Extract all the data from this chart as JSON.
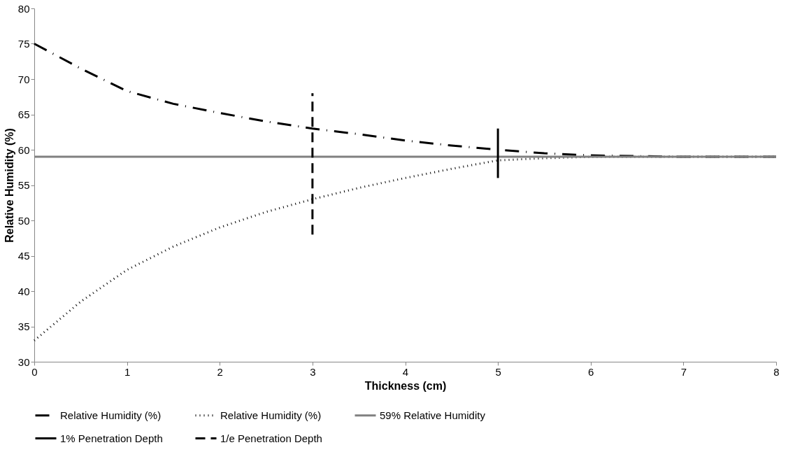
{
  "chart_data": {
    "type": "line",
    "xlabel": "Thickness  (cm)",
    "ylabel": "Relative Humidity (%)",
    "xlim": [
      0,
      8
    ],
    "xticks": [
      0,
      1,
      2,
      3,
      4,
      5,
      6,
      7,
      8
    ],
    "ylim": [
      30,
      80
    ],
    "yticks": [
      30,
      35,
      40,
      45,
      50,
      55,
      60,
      65,
      70,
      75,
      80
    ],
    "grid": false,
    "legend": "bottom",
    "marker": "none",
    "series": [
      {
        "name": "Relative Humidity (%)",
        "color": "#000000",
        "line_style": "dashdot",
        "x": [
          0,
          0.5,
          1,
          1.5,
          2,
          2.5,
          3,
          3.5,
          4,
          4.5,
          5,
          5.5,
          6,
          7,
          8
        ],
        "values": [
          75,
          71.5,
          68.3,
          66.5,
          65.2,
          64,
          63,
          62.2,
          61.3,
          60.6,
          60,
          59.5,
          59.2,
          59,
          59
        ]
      },
      {
        "name": "Relative Humidity (%)",
        "color": "#000000",
        "line_style": "dotted",
        "x": [
          0,
          0.5,
          1,
          1.5,
          2,
          2.5,
          3,
          3.5,
          4,
          4.5,
          5,
          5.5,
          6,
          7,
          8
        ],
        "values": [
          33,
          38.5,
          43,
          46.3,
          49,
          51.2,
          53,
          54.6,
          56,
          57.3,
          58.5,
          58.8,
          59,
          59,
          59
        ]
      },
      {
        "name": "59% Relative Humidity",
        "color": "#808080",
        "line_style": "solid",
        "x": [
          0,
          8
        ],
        "values": [
          59,
          59
        ]
      },
      {
        "name": "1% Penetration Depth",
        "color": "#000000",
        "line_style": "solid",
        "x": [
          5,
          5
        ],
        "values": [
          56,
          63
        ]
      },
      {
        "name": "1/e Penetration Depth",
        "color": "#000000",
        "line_style": "dashed",
        "x": [
          3,
          3
        ],
        "values": [
          48,
          68
        ]
      }
    ]
  }
}
